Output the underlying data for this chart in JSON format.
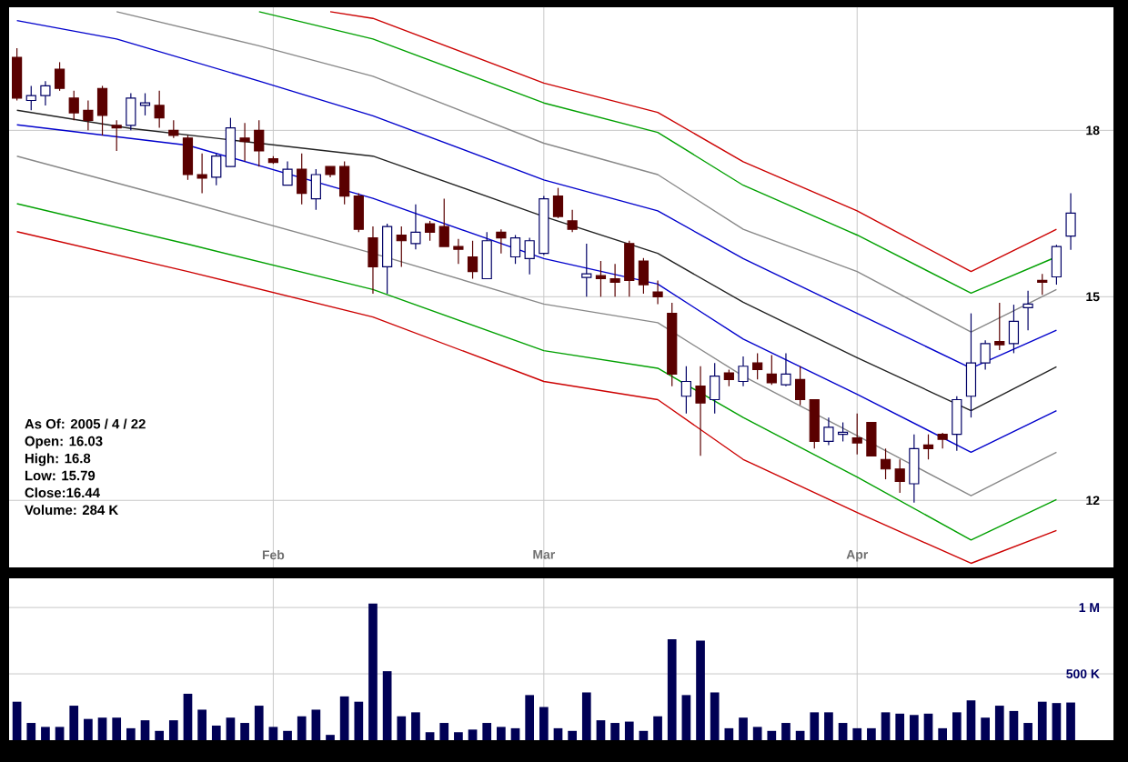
{
  "chart_data": [
    {
      "type": "candlestick",
      "categories": [
        null,
        null,
        null,
        null,
        null,
        null,
        null,
        null,
        null,
        null,
        null,
        null,
        null,
        null,
        null,
        null,
        null,
        null,
        "Feb",
        null,
        null,
        null,
        null,
        null,
        null,
        null,
        null,
        null,
        null,
        null,
        null,
        null,
        null,
        null,
        null,
        null,
        null,
        "Mar",
        null,
        null,
        null,
        null,
        null,
        null,
        null,
        null,
        null,
        null,
        null,
        null,
        null,
        null,
        null,
        null,
        null,
        null,
        null,
        null,
        null,
        "Apr",
        null,
        null,
        null,
        null,
        null,
        null,
        null,
        null,
        null,
        null,
        null,
        null,
        null,
        null,
        null
      ],
      "ohlc": [
        [
          19.5,
          19.7,
          18.6,
          18.65
        ],
        [
          18.6,
          18.9,
          18.4,
          18.7
        ],
        [
          18.7,
          19.0,
          18.5,
          18.9
        ],
        [
          19.25,
          19.4,
          18.8,
          18.85
        ],
        [
          18.65,
          18.8,
          18.2,
          18.35
        ],
        [
          18.4,
          18.6,
          18.0,
          18.2
        ],
        [
          18.85,
          18.9,
          17.9,
          18.3
        ],
        [
          18.1,
          18.2,
          17.6,
          18.05
        ],
        [
          18.1,
          18.75,
          18.0,
          18.65
        ],
        [
          18.5,
          18.75,
          18.3,
          18.55
        ],
        [
          18.5,
          18.8,
          18.05,
          18.25
        ],
        [
          18.0,
          18.2,
          17.85,
          17.9
        ],
        [
          17.85,
          17.9,
          17.05,
          17.15
        ],
        [
          17.15,
          17.55,
          16.8,
          17.08
        ],
        [
          17.1,
          17.55,
          16.95,
          17.5
        ],
        [
          17.3,
          18.25,
          17.3,
          18.05
        ],
        [
          17.85,
          18.15,
          17.4,
          17.78
        ],
        [
          18.0,
          18.2,
          17.3,
          17.6
        ],
        [
          17.45,
          17.5,
          17.35,
          17.38
        ],
        [
          16.95,
          17.4,
          16.95,
          17.25
        ],
        [
          17.25,
          17.55,
          16.6,
          16.8
        ],
        [
          16.7,
          17.25,
          16.5,
          17.15
        ],
        [
          17.3,
          17.3,
          17.1,
          17.15
        ],
        [
          17.3,
          17.4,
          16.6,
          16.75
        ],
        [
          16.75,
          16.8,
          16.1,
          16.15
        ],
        [
          16.0,
          16.2,
          15.05,
          15.5
        ],
        [
          15.5,
          16.25,
          15.05,
          16.2
        ],
        [
          16.05,
          16.2,
          15.5,
          15.95
        ],
        [
          15.9,
          16.6,
          15.8,
          16.1
        ],
        [
          16.25,
          16.3,
          15.95,
          16.1
        ],
        [
          16.2,
          16.7,
          15.85,
          15.85
        ],
        [
          15.85,
          15.98,
          15.55,
          15.8
        ],
        [
          15.67,
          15.95,
          15.3,
          15.42
        ],
        [
          15.3,
          16.1,
          15.3,
          15.95
        ],
        [
          16.1,
          16.15,
          15.73,
          16.0
        ],
        [
          15.67,
          16.05,
          15.55,
          16.0
        ],
        [
          15.64,
          16.0,
          15.37,
          15.95
        ],
        [
          15.73,
          16.75,
          15.7,
          16.7
        ],
        [
          16.75,
          16.9,
          16.35,
          16.38
        ],
        [
          16.3,
          16.5,
          16.1,
          16.15
        ],
        [
          15.32,
          15.9,
          15.0,
          15.38
        ],
        [
          15.35,
          15.6,
          15.0,
          15.3
        ],
        [
          15.3,
          15.55,
          15.0,
          15.24
        ],
        [
          15.9,
          15.95,
          15.0,
          15.27
        ],
        [
          15.6,
          15.65,
          15.05,
          15.2
        ],
        [
          15.08,
          15.27,
          14.88,
          15.0
        ],
        [
          14.73,
          14.9,
          13.6,
          13.78
        ],
        [
          13.45,
          13.9,
          13.2,
          13.67
        ],
        [
          13.6,
          13.9,
          12.6,
          13.35
        ],
        [
          13.4,
          13.95,
          13.2,
          13.75
        ],
        [
          13.8,
          13.85,
          13.6,
          13.7
        ],
        [
          13.67,
          14.05,
          13.6,
          13.9
        ],
        [
          13.95,
          14.1,
          13.7,
          13.85
        ],
        [
          13.78,
          14.07,
          13.62,
          13.65
        ],
        [
          13.62,
          14.1,
          13.6,
          13.78
        ],
        [
          13.7,
          13.9,
          13.32,
          13.4
        ],
        [
          13.4,
          13.4,
          12.7,
          12.8
        ],
        [
          12.8,
          13.14,
          12.75,
          13.0
        ],
        [
          12.9,
          13.07,
          12.8,
          12.93
        ],
        [
          12.85,
          13.2,
          12.62,
          12.78
        ],
        [
          13.07,
          13.07,
          12.6,
          12.6
        ],
        [
          12.55,
          12.7,
          12.28,
          12.42
        ],
        [
          12.42,
          12.55,
          12.1,
          12.25
        ],
        [
          12.22,
          12.9,
          11.97,
          12.7
        ],
        [
          12.75,
          12.9,
          12.55,
          12.7
        ],
        [
          12.9,
          12.92,
          12.7,
          12.83
        ],
        [
          12.9,
          13.45,
          12.67,
          13.4
        ],
        [
          13.45,
          14.73,
          13.14,
          13.95
        ],
        [
          13.95,
          14.3,
          13.85,
          14.25
        ],
        [
          14.28,
          14.9,
          14.15,
          14.23
        ],
        [
          14.25,
          14.87,
          14.1,
          14.6
        ],
        [
          14.82,
          15.1,
          14.46,
          14.88
        ],
        [
          15.27,
          15.38,
          15.03,
          15.24
        ],
        [
          15.33,
          15.88,
          15.2,
          15.85
        ],
        [
          16.03,
          16.8,
          15.79,
          16.44
        ]
      ],
      "series": [
        {
          "type": "line",
          "color": "#cc0000",
          "values": [
            null,
            null,
            null,
            null,
            null,
            null,
            null,
            null,
            null,
            null,
            null,
            null,
            null,
            null,
            null,
            null,
            null,
            null,
            null,
            null,
            null,
            null,
            20.5,
            null,
            null,
            20.35,
            null,
            null,
            null,
            null,
            null,
            null,
            null,
            null,
            null,
            null,
            null,
            18.96,
            null,
            null,
            null,
            null,
            null,
            null,
            null,
            18.36,
            null,
            null,
            null,
            null,
            null,
            17.39,
            null,
            null,
            null,
            null,
            null,
            null,
            null,
            16.48,
            null,
            null,
            null,
            null,
            null,
            null,
            null,
            15.42,
            null,
            null,
            null,
            null,
            null,
            16.15,
            null
          ]
        },
        {
          "type": "line",
          "color": "#00a000",
          "values": [
            null,
            null,
            null,
            null,
            null,
            null,
            null,
            null,
            null,
            null,
            null,
            null,
            null,
            null,
            null,
            null,
            null,
            20.5,
            null,
            null,
            null,
            null,
            null,
            null,
            null,
            19.9,
            null,
            null,
            null,
            null,
            null,
            null,
            null,
            null,
            null,
            null,
            null,
            18.55,
            null,
            null,
            null,
            null,
            null,
            null,
            null,
            17.96,
            null,
            null,
            null,
            null,
            null,
            16.95,
            null,
            null,
            null,
            null,
            null,
            null,
            null,
            16.05,
            null,
            null,
            null,
            null,
            null,
            null,
            null,
            15.06,
            null,
            null,
            null,
            null,
            null,
            15.67,
            null
          ]
        },
        {
          "type": "line",
          "color": "#888888",
          "values": [
            null,
            null,
            null,
            null,
            null,
            null,
            null,
            20.5,
            null,
            null,
            null,
            null,
            null,
            null,
            null,
            null,
            null,
            19.75,
            null,
            null,
            null,
            null,
            null,
            null,
            null,
            19.1,
            null,
            null,
            null,
            null,
            null,
            null,
            null,
            null,
            null,
            null,
            null,
            17.75,
            null,
            null,
            null,
            null,
            null,
            null,
            null,
            17.15,
            null,
            null,
            null,
            null,
            null,
            16.15,
            null,
            null,
            null,
            null,
            null,
            null,
            null,
            15.42,
            null,
            null,
            null,
            null,
            null,
            null,
            null,
            14.43,
            null,
            null,
            null,
            null,
            null,
            15.12,
            null
          ]
        },
        {
          "type": "line",
          "color": "#0000cc",
          "values": [
            20.3,
            null,
            null,
            null,
            null,
            null,
            null,
            19.9,
            null,
            null,
            null,
            null,
            null,
            null,
            null,
            null,
            null,
            19.0,
            null,
            null,
            null,
            null,
            null,
            null,
            null,
            18.29,
            null,
            null,
            null,
            null,
            null,
            null,
            null,
            null,
            null,
            null,
            null,
            17.05,
            null,
            null,
            null,
            null,
            null,
            null,
            null,
            16.48,
            null,
            null,
            null,
            null,
            null,
            15.64,
            null,
            null,
            null,
            null,
            null,
            null,
            null,
            14.73,
            null,
            null,
            null,
            null,
            null,
            null,
            null,
            13.87,
            null,
            null,
            null,
            null,
            null,
            14.46,
            null
          ]
        },
        {
          "type": "line",
          "color": "#222222",
          "values": [
            18.4,
            null,
            null,
            null,
            null,
            null,
            null,
            null,
            18.04,
            null,
            null,
            null,
            null,
            null,
            null,
            null,
            null,
            17.75,
            null,
            null,
            null,
            null,
            null,
            null,
            null,
            17.5,
            null,
            null,
            null,
            null,
            null,
            null,
            null,
            null,
            null,
            null,
            null,
            16.38,
            null,
            null,
            null,
            null,
            null,
            null,
            null,
            15.73,
            null,
            null,
            null,
            null,
            null,
            14.91,
            null,
            null,
            null,
            null,
            null,
            null,
            null,
            14.03,
            null,
            null,
            null,
            null,
            null,
            null,
            null,
            13.24,
            null,
            null,
            null,
            null,
            null,
            13.89,
            null
          ]
        },
        {
          "type": "line",
          "color": "#0000cc",
          "values": [
            18.11,
            null,
            null,
            null,
            null,
            null,
            null,
            null,
            null,
            null,
            null,
            null,
            17.71,
            null,
            null,
            null,
            null,
            null,
            null,
            null,
            null,
            null,
            null,
            null,
            null,
            16.71,
            null,
            null,
            null,
            null,
            null,
            null,
            null,
            null,
            null,
            null,
            null,
            15.64,
            null,
            null,
            null,
            null,
            null,
            null,
            null,
            15.21,
            null,
            null,
            null,
            null,
            null,
            14.32,
            null,
            null,
            null,
            null,
            null,
            null,
            null,
            13.48,
            null,
            null,
            null,
            null,
            null,
            null,
            null,
            12.65,
            null,
            null,
            null,
            null,
            null,
            13.24,
            null
          ]
        },
        {
          "type": "line",
          "color": "#888888",
          "values": [
            17.5,
            null,
            null,
            null,
            null,
            null,
            null,
            null,
            null,
            null,
            null,
            null,
            16.64,
            null,
            null,
            null,
            null,
            null,
            null,
            null,
            null,
            null,
            null,
            null,
            null,
            15.73,
            null,
            null,
            null,
            null,
            null,
            null,
            null,
            null,
            null,
            null,
            null,
            14.88,
            null,
            null,
            null,
            null,
            null,
            null,
            null,
            14.58,
            null,
            null,
            null,
            null,
            null,
            13.75,
            null,
            null,
            null,
            null,
            null,
            null,
            null,
            12.88,
            null,
            null,
            null,
            null,
            null,
            null,
            null,
            12.06,
            null,
            null,
            null,
            null,
            null,
            12.65,
            null
          ]
        },
        {
          "type": "line",
          "color": "#00a000",
          "values": [
            16.61,
            null,
            null,
            null,
            null,
            null,
            null,
            null,
            null,
            null,
            null,
            null,
            15.89,
            null,
            null,
            null,
            null,
            null,
            null,
            null,
            null,
            null,
            null,
            null,
            null,
            15.12,
            null,
            null,
            null,
            null,
            null,
            null,
            null,
            null,
            null,
            null,
            null,
            14.14,
            null,
            null,
            null,
            null,
            null,
            null,
            null,
            13.87,
            null,
            null,
            null,
            null,
            null,
            13.14,
            null,
            null,
            null,
            null,
            null,
            null,
            null,
            12.31,
            null,
            null,
            null,
            null,
            null,
            null,
            null,
            11.49,
            null,
            null,
            null,
            null,
            null,
            12.01,
            null
          ]
        },
        {
          "type": "line",
          "color": "#cc0000",
          "values": [
            16.11,
            null,
            null,
            null,
            null,
            null,
            null,
            null,
            null,
            null,
            null,
            null,
            15.42,
            null,
            null,
            null,
            null,
            null,
            null,
            null,
            null,
            null,
            null,
            null,
            null,
            14.67,
            null,
            null,
            null,
            null,
            null,
            null,
            null,
            null,
            null,
            null,
            null,
            13.67,
            null,
            null,
            null,
            null,
            null,
            null,
            null,
            13.4,
            null,
            null,
            null,
            null,
            null,
            12.55,
            null,
            null,
            null,
            null,
            null,
            null,
            null,
            11.84,
            null,
            null,
            null,
            null,
            null,
            null,
            null,
            11.2,
            null,
            null,
            null,
            null,
            null,
            11.61,
            null
          ]
        }
      ],
      "log": "y",
      "ylim": [
        11.15,
        20.6
      ],
      "yticks": [
        12,
        15,
        18
      ],
      "grid": true,
      "annotations": [
        "As Of: 2005 / 4 / 22",
        "Open: 16.03",
        "High: 16.8",
        "Low: 15.79",
        "Close:16.44",
        "Volume: 284 K"
      ]
    },
    {
      "type": "bar",
      "categories": [
        null,
        null,
        null,
        null,
        null,
        null,
        null,
        null,
        null,
        null,
        null,
        null,
        null,
        null,
        null,
        null,
        null,
        null,
        null,
        null,
        null,
        null,
        null,
        null,
        null,
        null,
        null,
        null,
        null,
        null,
        null,
        null,
        null,
        null,
        null,
        null,
        null,
        null,
        null,
        null,
        null,
        null,
        null,
        null,
        null,
        null,
        null,
        null,
        null,
        null,
        null,
        null,
        null,
        null,
        null,
        null,
        null,
        null,
        null,
        null,
        null,
        null,
        null,
        null,
        null,
        null,
        null,
        null,
        null,
        null,
        null,
        null,
        null,
        null,
        null
      ],
      "values": [
        290000,
        130000,
        100000,
        100000,
        260000,
        160000,
        170000,
        170000,
        90000,
        150000,
        70000,
        150000,
        350000,
        230000,
        110000,
        170000,
        130000,
        260000,
        100000,
        70000,
        180000,
        230000,
        40000,
        330000,
        290000,
        1030000,
        520000,
        180000,
        210000,
        60000,
        130000,
        60000,
        80000,
        130000,
        100000,
        90000,
        340000,
        250000,
        90000,
        70000,
        360000,
        150000,
        130000,
        140000,
        70000,
        180000,
        760000,
        340000,
        750000,
        360000,
        90000,
        170000,
        100000,
        70000,
        130000,
        70000,
        210000,
        210000,
        130000,
        90000,
        90000,
        210000,
        200000,
        190000,
        200000,
        90000,
        210000,
        300000,
        170000,
        260000,
        220000,
        130000,
        290000,
        280000,
        284000
      ],
      "color": "#000055",
      "ylim": [
        0,
        1220000
      ],
      "yticks": [
        {
          "value": 1000000,
          "label": "1 M"
        },
        {
          "value": 500000,
          "label": "500 K"
        }
      ],
      "grid": true,
      "tick_labels": "y"
    }
  ]
}
